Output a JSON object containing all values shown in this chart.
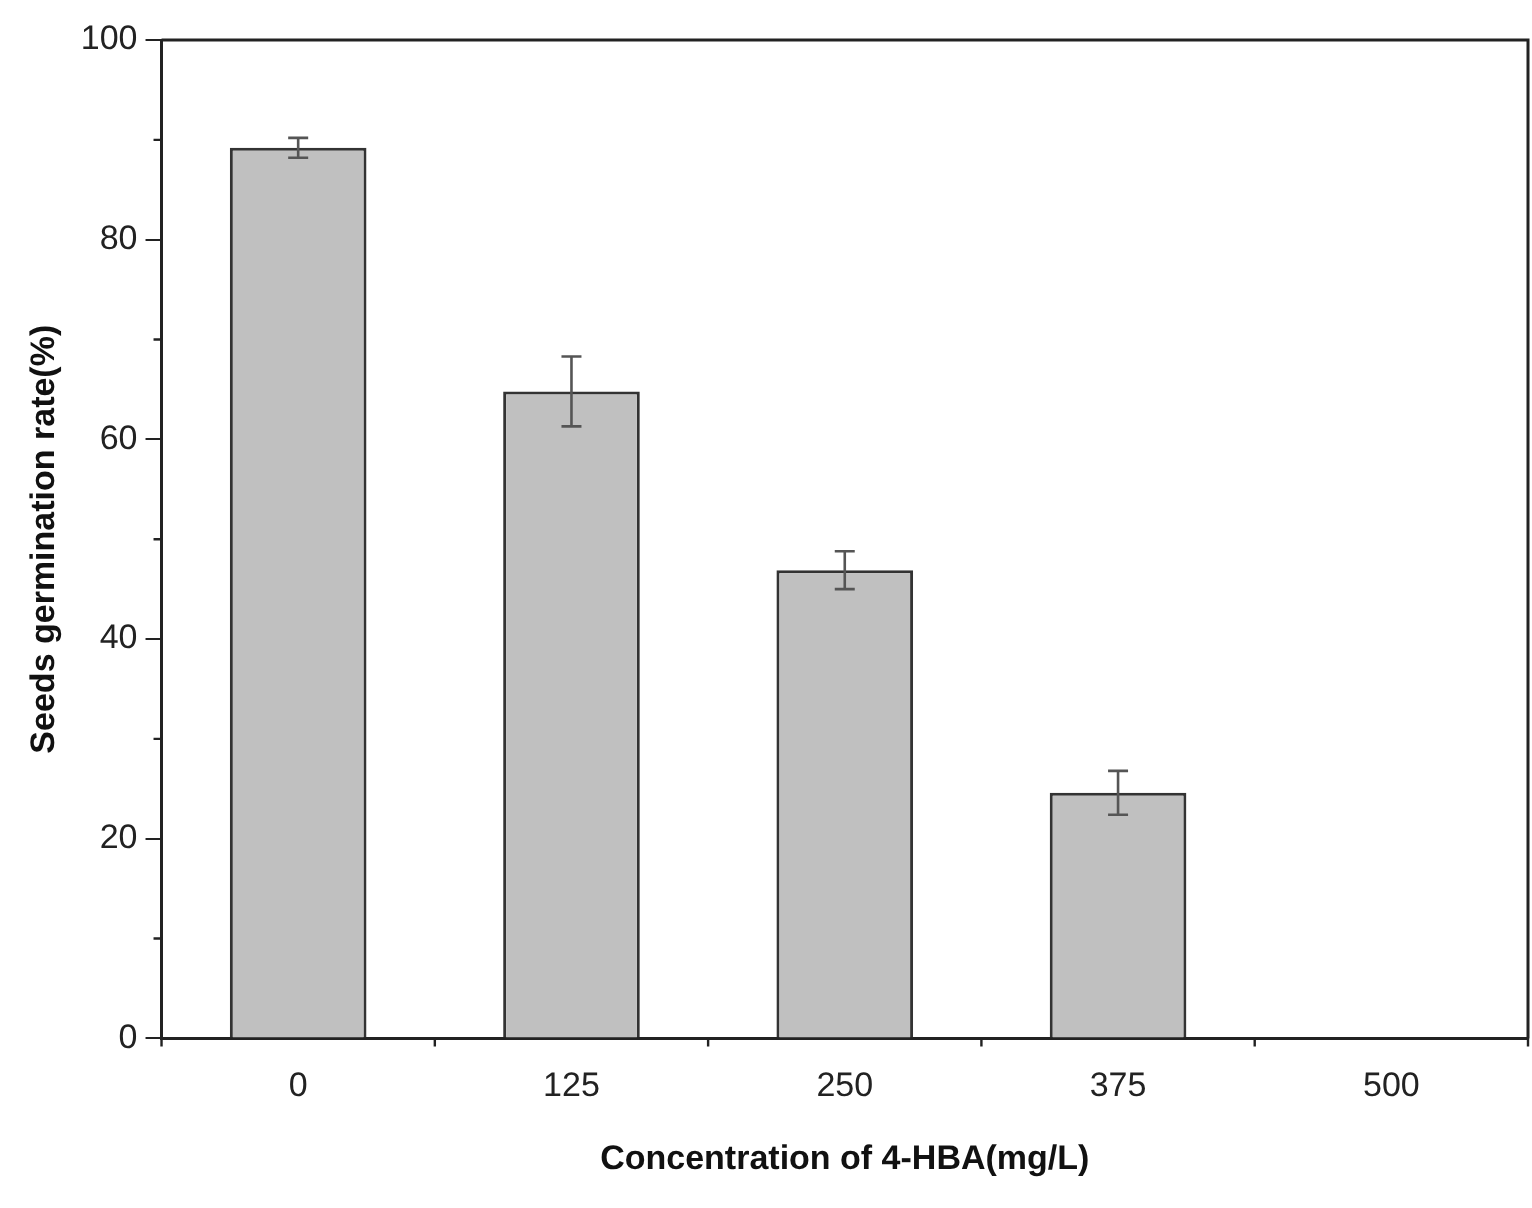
{
  "chart_data": {
    "type": "bar",
    "xlabel": "Concentration of 4-HBA(mg/L)",
    "ylabel": "Seeds germination rate(%)",
    "categories": [
      "0",
      "125",
      "250",
      "375",
      "500"
    ],
    "values": [
      89.2,
      64.8,
      46.9,
      24.6,
      0
    ],
    "errors": [
      1.0,
      3.5,
      1.9,
      2.2,
      null
    ],
    "color": "#c0c0c0",
    "ylim": [
      0,
      100
    ],
    "yticks": [
      0,
      20,
      40,
      60,
      80,
      100
    ],
    "grid": false,
    "legend": false
  }
}
